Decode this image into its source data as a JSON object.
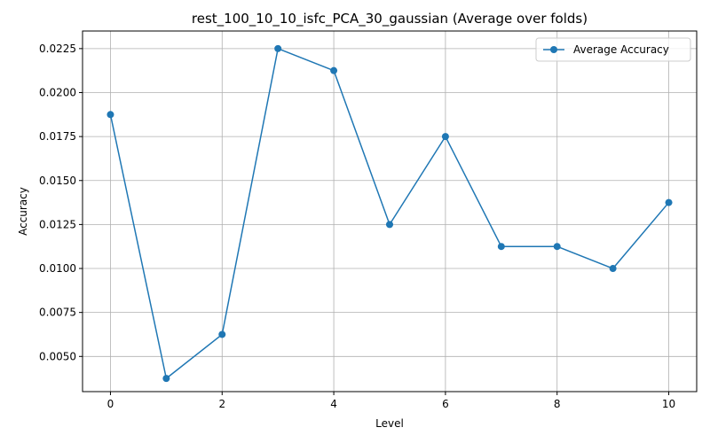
{
  "chart_data": {
    "type": "line",
    "title": "rest_100_10_10_isfc_PCA_30_gaussian (Average over folds)",
    "xlabel": "Level",
    "ylabel": "Accuracy",
    "xlim": [
      -0.5,
      10.5
    ],
    "ylim": [
      0.003,
      0.0235
    ],
    "x_ticks": [
      0,
      2,
      4,
      6,
      8,
      10
    ],
    "x_tick_labels": [
      "0",
      "2",
      "4",
      "6",
      "8",
      "10"
    ],
    "y_ticks": [
      0.005,
      0.0075,
      0.01,
      0.0125,
      0.015,
      0.0175,
      0.02,
      0.0225
    ],
    "y_tick_labels": [
      "0.0050",
      "0.0075",
      "0.0100",
      "0.0125",
      "0.0150",
      "0.0175",
      "0.0200",
      "0.0225"
    ],
    "grid": true,
    "legend_position": "top-right",
    "x": [
      0,
      1,
      2,
      3,
      4,
      5,
      6,
      7,
      8,
      9,
      10
    ],
    "series": [
      {
        "name": "Average Accuracy",
        "color": "#1f77b4",
        "marker": "circle",
        "values": [
          0.01875,
          0.00375,
          0.00625,
          0.0225,
          0.02125,
          0.0125,
          0.0175,
          0.01125,
          0.01125,
          0.01,
          0.01375
        ]
      }
    ]
  }
}
